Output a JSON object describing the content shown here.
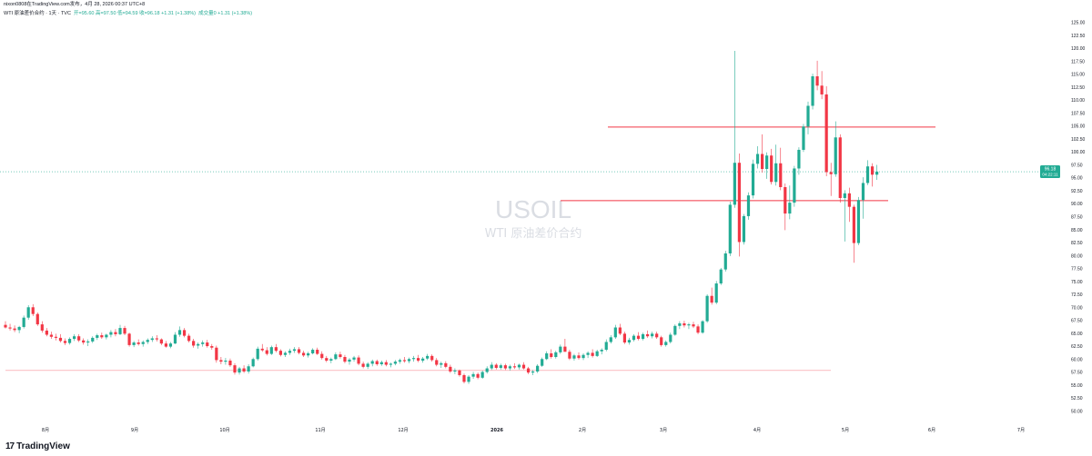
{
  "header": {
    "publisher": "nixon0808在TradingView.com发布，4月 28, 2026 00:37 UTC+8",
    "instrument": "WTI 原油差价合约 · 1天 · TVC",
    "open": "开=95.60",
    "high": "高=97.50",
    "low": "低=94.59",
    "close": "收=96.18",
    "change": "+1.31 (+1.38%)",
    "volume": "成交量0 +1.31 (+1.38%)"
  },
  "watermark": {
    "symbol": "USOIL",
    "name": "WTI 原油差价合约"
  },
  "price_label": {
    "value": "96.18",
    "timer": "04:22:11"
  },
  "logo": {
    "mark": "17",
    "text": "TradingView"
  },
  "colors": {
    "up": "#22ab94",
    "down": "#f23645",
    "hline": "#f23645",
    "last_price": "#22ab94"
  },
  "chart_data": {
    "type": "candlestick",
    "x_ticks": [
      "8月",
      "9月",
      "10月",
      "11月",
      "12月",
      "2026",
      "2月",
      "3月",
      "4月",
      "5月",
      "6月",
      "7月"
    ],
    "y_ticks": [
      "125.00",
      "122.50",
      "120.00",
      "117.50",
      "115.00",
      "112.50",
      "110.00",
      "107.50",
      "105.00",
      "102.50",
      "100.00",
      "97.50",
      "95.00",
      "92.50",
      "90.00",
      "87.50",
      "85.00",
      "82.50",
      "80.00",
      "77.50",
      "75.00",
      "72.50",
      "70.00",
      "67.50",
      "65.00",
      "62.50",
      "60.00",
      "57.50",
      "55.00",
      "52.50",
      "50.00"
    ],
    "ylim": [
      49,
      126
    ],
    "candles": [
      [
        66.6,
        67.3,
        65.9,
        66.1
      ],
      [
        66.1,
        66.8,
        65.5,
        65.9
      ],
      [
        65.9,
        66.5,
        65.2,
        65.6
      ],
      [
        65.6,
        66.4,
        65.0,
        66.2
      ],
      [
        66.2,
        68.4,
        65.9,
        68.0
      ],
      [
        68.0,
        70.4,
        67.6,
        70.0
      ],
      [
        70.0,
        70.6,
        68.3,
        68.7
      ],
      [
        68.7,
        69.0,
        66.4,
        66.7
      ],
      [
        66.7,
        67.3,
        65.1,
        65.5
      ],
      [
        65.5,
        66.0,
        64.4,
        64.7
      ],
      [
        64.7,
        65.3,
        63.9,
        64.3
      ],
      [
        64.3,
        64.9,
        63.6,
        64.1
      ],
      [
        64.1,
        64.8,
        63.2,
        63.5
      ],
      [
        63.5,
        64.0,
        62.7,
        63.1
      ],
      [
        63.1,
        64.2,
        62.8,
        63.9
      ],
      [
        63.9,
        64.8,
        63.5,
        64.4
      ],
      [
        64.4,
        64.8,
        63.3,
        63.6
      ],
      [
        63.6,
        64.0,
        62.8,
        63.2
      ],
      [
        63.2,
        63.8,
        62.5,
        63.4
      ],
      [
        63.4,
        64.4,
        63.1,
        64.1
      ],
      [
        64.1,
        64.9,
        63.7,
        64.6
      ],
      [
        64.6,
        65.1,
        63.9,
        64.2
      ],
      [
        64.2,
        64.9,
        63.8,
        64.7
      ],
      [
        64.7,
        65.6,
        64.2,
        65.2
      ],
      [
        65.2,
        65.8,
        64.4,
        64.8
      ],
      [
        64.8,
        66.6,
        64.6,
        66.0
      ],
      [
        66.0,
        66.4,
        64.6,
        64.9
      ],
      [
        64.9,
        65.1,
        62.4,
        62.7
      ],
      [
        62.7,
        63.5,
        62.3,
        63.2
      ],
      [
        63.2,
        63.8,
        62.6,
        62.9
      ],
      [
        62.9,
        63.6,
        62.4,
        63.3
      ],
      [
        63.3,
        64.0,
        62.9,
        63.7
      ],
      [
        63.7,
        64.4,
        63.3,
        64.0
      ],
      [
        64.0,
        64.6,
        63.4,
        63.8
      ],
      [
        63.8,
        64.0,
        62.7,
        63.0
      ],
      [
        63.0,
        63.5,
        62.2,
        62.4
      ],
      [
        62.4,
        63.3,
        62.1,
        63.0
      ],
      [
        63.0,
        65.2,
        62.9,
        64.7
      ],
      [
        64.7,
        66.3,
        64.3,
        65.6
      ],
      [
        65.6,
        66.0,
        64.2,
        64.5
      ],
      [
        64.5,
        64.9,
        63.2,
        63.5
      ],
      [
        63.5,
        63.9,
        62.2,
        62.6
      ],
      [
        62.6,
        63.2,
        62.0,
        62.9
      ],
      [
        62.9,
        63.6,
        62.4,
        63.2
      ],
      [
        63.2,
        63.7,
        62.2,
        62.5
      ],
      [
        62.5,
        62.9,
        61.8,
        62.2
      ],
      [
        62.2,
        62.6,
        59.3,
        59.8
      ],
      [
        59.8,
        60.4,
        59.0,
        59.5
      ],
      [
        59.5,
        60.2,
        58.9,
        59.7
      ],
      [
        59.7,
        60.1,
        58.5,
        58.8
      ],
      [
        58.8,
        59.2,
        57.0,
        57.4
      ],
      [
        57.4,
        58.5,
        57.0,
        58.2
      ],
      [
        58.2,
        58.8,
        57.3,
        57.6
      ],
      [
        57.6,
        59.0,
        57.2,
        58.6
      ],
      [
        58.6,
        60.3,
        58.4,
        60.0
      ],
      [
        60.0,
        62.4,
        59.7,
        62.0
      ],
      [
        62.0,
        62.9,
        61.4,
        61.7
      ],
      [
        61.7,
        62.3,
        60.7,
        61.0
      ],
      [
        61.0,
        62.6,
        60.8,
        62.3
      ],
      [
        62.3,
        62.9,
        61.3,
        61.6
      ],
      [
        61.6,
        61.9,
        60.5,
        60.8
      ],
      [
        60.8,
        61.5,
        60.4,
        61.2
      ],
      [
        61.2,
        62.0,
        60.8,
        61.6
      ],
      [
        61.6,
        62.3,
        61.2,
        61.9
      ],
      [
        61.9,
        62.3,
        60.9,
        61.2
      ],
      [
        61.2,
        61.6,
        60.4,
        60.7
      ],
      [
        60.7,
        61.4,
        60.3,
        61.1
      ],
      [
        61.1,
        62.1,
        60.9,
        61.8
      ],
      [
        61.8,
        62.2,
        60.8,
        61.0
      ],
      [
        61.0,
        61.5,
        59.9,
        60.2
      ],
      [
        60.2,
        60.6,
        59.4,
        59.7
      ],
      [
        59.7,
        60.3,
        59.2,
        60.0
      ],
      [
        60.0,
        61.3,
        59.8,
        60.9
      ],
      [
        60.9,
        61.4,
        60.1,
        60.4
      ],
      [
        60.4,
        60.8,
        59.2,
        59.5
      ],
      [
        59.5,
        60.2,
        58.9,
        59.9
      ],
      [
        59.9,
        60.6,
        59.5,
        60.3
      ],
      [
        60.3,
        60.7,
        58.8,
        59.1
      ],
      [
        59.1,
        59.5,
        58.2,
        58.5
      ],
      [
        58.5,
        59.4,
        58.1,
        59.1
      ],
      [
        59.1,
        59.9,
        58.6,
        59.6
      ],
      [
        59.6,
        59.9,
        58.7,
        59.0
      ],
      [
        59.0,
        59.7,
        58.7,
        59.4
      ],
      [
        59.4,
        59.8,
        58.6,
        58.9
      ],
      [
        58.9,
        59.3,
        58.4,
        59.1
      ],
      [
        59.1,
        59.8,
        58.8,
        59.5
      ],
      [
        59.5,
        60.1,
        59.1,
        59.8
      ],
      [
        59.8,
        60.4,
        59.3,
        59.6
      ],
      [
        59.6,
        60.3,
        59.2,
        60.0
      ],
      [
        60.0,
        60.6,
        59.5,
        60.2
      ],
      [
        60.2,
        60.8,
        59.4,
        59.7
      ],
      [
        59.7,
        60.4,
        59.3,
        60.1
      ],
      [
        60.1,
        61.0,
        59.8,
        60.6
      ],
      [
        60.6,
        60.9,
        59.5,
        59.8
      ],
      [
        59.8,
        60.2,
        58.6,
        58.9
      ],
      [
        58.9,
        59.5,
        58.3,
        59.2
      ],
      [
        59.2,
        59.6,
        58.2,
        58.5
      ],
      [
        58.5,
        58.9,
        57.3,
        57.6
      ],
      [
        57.6,
        58.2,
        57.1,
        57.8
      ],
      [
        57.8,
        58.0,
        56.6,
        56.9
      ],
      [
        56.9,
        57.2,
        55.3,
        55.6
      ],
      [
        55.6,
        56.9,
        55.2,
        56.6
      ],
      [
        56.6,
        57.5,
        56.2,
        57.1
      ],
      [
        57.1,
        57.4,
        56.1,
        56.4
      ],
      [
        56.4,
        57.8,
        56.2,
        57.5
      ],
      [
        57.5,
        58.6,
        57.2,
        58.2
      ],
      [
        58.2,
        59.4,
        57.9,
        58.9
      ],
      [
        58.9,
        59.2,
        58.0,
        58.3
      ],
      [
        58.3,
        59.1,
        58.0,
        58.8
      ],
      [
        58.8,
        59.1,
        57.9,
        58.2
      ],
      [
        58.2,
        58.9,
        57.8,
        58.6
      ],
      [
        58.6,
        59.2,
        58.1,
        58.4
      ],
      [
        58.4,
        59.1,
        58.0,
        58.9
      ],
      [
        58.9,
        59.4,
        58.0,
        58.2
      ],
      [
        58.2,
        58.5,
        57.1,
        57.4
      ],
      [
        57.4,
        57.9,
        56.9,
        57.6
      ],
      [
        57.6,
        59.0,
        57.3,
        58.7
      ],
      [
        58.7,
        60.3,
        58.5,
        60.0
      ],
      [
        60.0,
        61.5,
        59.8,
        61.1
      ],
      [
        61.1,
        61.9,
        60.1,
        60.4
      ],
      [
        60.4,
        61.6,
        60.1,
        61.3
      ],
      [
        61.3,
        62.8,
        61.0,
        62.4
      ],
      [
        62.4,
        63.9,
        62.0,
        61.4
      ],
      [
        61.4,
        61.8,
        59.8,
        60.1
      ],
      [
        60.1,
        61.0,
        59.7,
        60.7
      ],
      [
        60.7,
        61.3,
        59.9,
        60.2
      ],
      [
        60.2,
        61.1,
        59.8,
        60.8
      ],
      [
        60.8,
        61.5,
        60.2,
        61.2
      ],
      [
        61.2,
        61.9,
        60.3,
        60.6
      ],
      [
        60.6,
        61.8,
        60.4,
        61.5
      ],
      [
        61.5,
        62.1,
        60.9,
        61.8
      ],
      [
        61.8,
        63.8,
        61.5,
        63.3
      ],
      [
        63.3,
        64.6,
        63.0,
        64.2
      ],
      [
        64.2,
        66.6,
        63.9,
        66.1
      ],
      [
        66.1,
        66.8,
        64.6,
        64.9
      ],
      [
        64.9,
        65.3,
        62.9,
        63.2
      ],
      [
        63.2,
        64.1,
        62.8,
        63.7
      ],
      [
        63.7,
        64.8,
        63.4,
        64.5
      ],
      [
        64.5,
        65.2,
        63.6,
        63.9
      ],
      [
        63.9,
        65.1,
        63.6,
        64.8
      ],
      [
        64.8,
        65.5,
        64.1,
        64.4
      ],
      [
        64.4,
        65.3,
        64.0,
        64.9
      ],
      [
        64.9,
        65.3,
        63.9,
        64.2
      ],
      [
        64.2,
        64.5,
        62.4,
        62.7
      ],
      [
        62.7,
        63.6,
        62.4,
        63.3
      ],
      [
        63.3,
        65.1,
        63.0,
        64.7
      ],
      [
        64.7,
        66.7,
        64.5,
        66.4
      ],
      [
        66.4,
        67.3,
        65.8,
        66.9
      ],
      [
        66.9,
        67.4,
        66.1,
        66.5
      ],
      [
        66.5,
        67.0,
        65.8,
        66.7
      ],
      [
        66.7,
        67.2,
        66.0,
        66.3
      ],
      [
        66.3,
        66.7,
        64.8,
        65.1
      ],
      [
        65.1,
        67.5,
        64.9,
        67.3
      ],
      [
        67.3,
        72.5,
        67.0,
        72.2
      ],
      [
        72.2,
        73.8,
        70.5,
        70.9
      ],
      [
        70.9,
        75.1,
        70.6,
        74.6
      ],
      [
        74.6,
        77.6,
        74.3,
        77.3
      ],
      [
        77.3,
        80.9,
        76.9,
        80.4
      ],
      [
        80.4,
        90.4,
        79.9,
        89.8
      ],
      [
        89.8,
        119.5,
        89.2,
        97.9
      ],
      [
        97.9,
        99.7,
        79.8,
        82.6
      ],
      [
        82.6,
        88.0,
        82.1,
        87.6
      ],
      [
        87.6,
        92.2,
        86.9,
        91.6
      ],
      [
        91.6,
        98.5,
        91.0,
        97.7
      ],
      [
        97.7,
        101.1,
        96.8,
        99.6
      ],
      [
        99.6,
        103.4,
        96.0,
        96.7
      ],
      [
        96.7,
        99.9,
        94.8,
        99.3
      ],
      [
        99.3,
        100.6,
        93.7,
        94.2
      ],
      [
        94.2,
        101.4,
        93.5,
        97.8
      ],
      [
        97.8,
        100.8,
        92.6,
        93.2
      ],
      [
        93.2,
        93.9,
        84.9,
        88.1
      ],
      [
        88.1,
        93.5,
        87.0,
        90.2
      ],
      [
        90.2,
        97.3,
        89.4,
        96.8
      ],
      [
        96.8,
        100.9,
        95.6,
        100.4
      ],
      [
        100.4,
        105.4,
        100.0,
        104.9
      ],
      [
        104.9,
        109.7,
        103.4,
        108.9
      ],
      [
        108.9,
        115.1,
        108.2,
        114.6
      ],
      [
        114.6,
        117.6,
        111.9,
        112.8
      ],
      [
        112.8,
        115.6,
        110.2,
        111.1
      ],
      [
        111.1,
        112.7,
        95.3,
        96.1
      ],
      [
        96.1,
        97.9,
        91.5,
        95.7
      ],
      [
        95.7,
        105.9,
        95.2,
        102.8
      ],
      [
        102.8,
        103.4,
        90.2,
        91.1
      ],
      [
        91.1,
        92.6,
        82.7,
        92.0
      ],
      [
        92.0,
        93.1,
        86.5,
        89.4
      ],
      [
        89.4,
        89.8,
        78.6,
        82.4
      ],
      [
        82.4,
        91.3,
        82.0,
        90.7
      ],
      [
        90.7,
        95.1,
        87.1,
        94.0
      ],
      [
        94.0,
        98.4,
        93.6,
        97.2
      ],
      [
        97.2,
        97.8,
        93.3,
        95.6
      ],
      [
        95.6,
        97.5,
        94.6,
        96.2
      ]
    ],
    "hlines": [
      104.8,
      90.6,
      57.8
    ],
    "last_price": 96.18
  }
}
